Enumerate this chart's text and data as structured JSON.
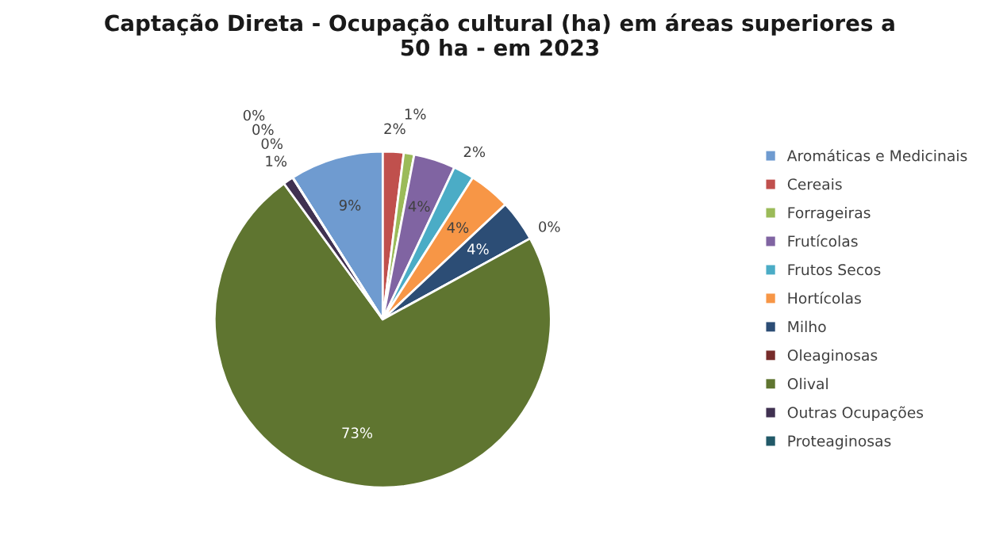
{
  "chart_data": {
    "type": "pie",
    "title": "Captação Direta - Ocupação cultural (ha) em áreas superiores a\n50 ha - em 2023",
    "categories": [
      "Aromáticas e Medicinais",
      "Cereais",
      "Forrageiras",
      "Frutícolas",
      "Frutos Secos",
      "Hortícolas",
      "Milho",
      "Oleaginosas",
      "Olival",
      "Outras Ocupações",
      "Proteaginosas",
      null,
      null
    ],
    "values": [
      9,
      2,
      1,
      4,
      2,
      4,
      4,
      0,
      73,
      1,
      0,
      0,
      0
    ],
    "colors": [
      "#6f9bd0",
      "#c0504d",
      "#9bbb59",
      "#8064a2",
      "#4bacc6",
      "#f79646",
      "#2c4d75",
      "#772c2a",
      "#5f7530",
      "#403151",
      "#215968",
      "#b65708",
      "#729aca"
    ],
    "value_labels": [
      "9%",
      "2%",
      "1%",
      "4%",
      "2%",
      "4%",
      "4%",
      "0%",
      "73%",
      "1%",
      "0%",
      "0%",
      "0%"
    ],
    "legend": "right"
  }
}
